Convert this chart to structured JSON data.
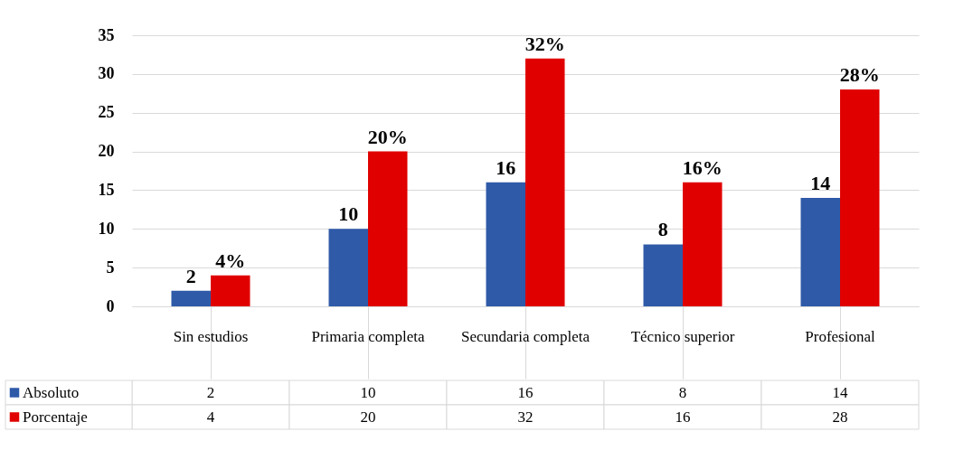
{
  "chart_data": {
    "type": "bar",
    "categories": [
      "Sin estudios",
      "Primaria completa",
      "Secundaria completa",
      "Técnico superior",
      "Profesional"
    ],
    "series": [
      {
        "name": "Absoluto",
        "color": "#2f5aa8",
        "values": [
          2,
          10,
          16,
          8,
          14
        ],
        "value_labels": [
          "2",
          "10",
          "16",
          "8",
          "14"
        ]
      },
      {
        "name": "Porcentaje",
        "color": "#e00000",
        "values": [
          4,
          20,
          32,
          16,
          28
        ],
        "value_labels": [
          "4%",
          "20%",
          "32%",
          "16%",
          "28%"
        ]
      }
    ],
    "annotations": [
      "2",
      "10",
      "16",
      "8",
      "14",
      "4",
      "20",
      "32",
      "16",
      "28"
    ],
    "ylim": [
      0,
      35
    ],
    "yticks": [
      0,
      5,
      10,
      15,
      20,
      25,
      30,
      35
    ],
    "grid": "y",
    "legend": "bottom"
  }
}
